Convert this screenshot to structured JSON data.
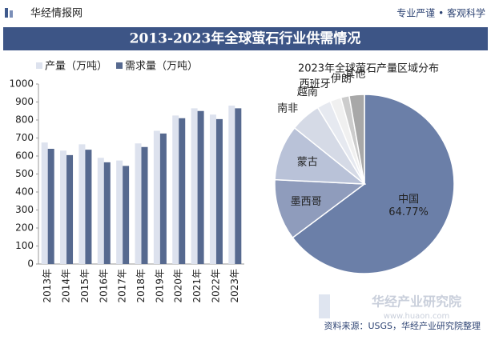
{
  "header": {
    "brand": "华经情报网",
    "slogan": "专业严谨 • 客观科学"
  },
  "page_title": "2013-2023年全球萤石行业供需情况",
  "source": "资料来源：USGS，华经产业研究院整理",
  "watermark": {
    "name": "华经产业研究院",
    "url": "www.huaon.com"
  },
  "chart_data": [
    {
      "type": "bar",
      "categories": [
        "2013年",
        "2014年",
        "2015年",
        "2016年",
        "2017年",
        "2018年",
        "2019年",
        "2020年",
        "2021年",
        "2022年",
        "2023年"
      ],
      "series": [
        {
          "name": "产量（万吨）",
          "color": "#dde2ee",
          "values": [
            675,
            630,
            665,
            590,
            575,
            670,
            740,
            825,
            865,
            830,
            880
          ]
        },
        {
          "name": "需求量（万吨）",
          "color": "#56698f",
          "values": [
            640,
            605,
            635,
            565,
            545,
            650,
            725,
            810,
            850,
            805,
            865
          ]
        }
      ],
      "ylim": [
        0,
        1000
      ],
      "yticks": [
        0,
        100,
        200,
        300,
        400,
        500,
        600,
        700,
        800,
        900,
        1000
      ],
      "grid": false
    },
    {
      "type": "pie",
      "title": "2023年全球萤石产量区域分布",
      "categories": [
        "中国",
        "墨西哥",
        "蒙古",
        "南非",
        "越南",
        "西班牙",
        "伊朗",
        "其他"
      ],
      "values": [
        64.77,
        11,
        10,
        5.5,
        2.5,
        2,
        1.5,
        2.73
      ],
      "value_labels": [
        "64.77%",
        null,
        null,
        null,
        null,
        null,
        null,
        null
      ],
      "colors": [
        "#6b7fa8",
        "#8f9cbc",
        "#b9c2d8",
        "#d5dae6",
        "#e6e9f0",
        "#f0f0f0",
        "#cccccc",
        "#a8a8a8"
      ]
    }
  ]
}
